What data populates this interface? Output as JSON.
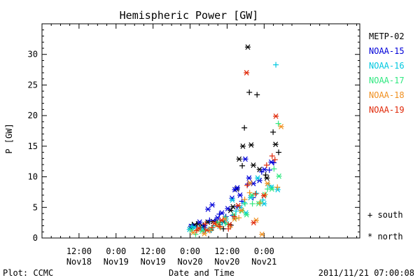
{
  "chart_data": {
    "type": "scatter",
    "title": "Hemispheric Power [GW]",
    "ylabel": "P [GW]",
    "xlabel": "Date and Time",
    "ylim": [
      0,
      35
    ],
    "yticks": [
      0,
      5,
      10,
      15,
      20,
      25,
      30
    ],
    "xlim_hours": [
      0,
      103
    ],
    "x_ticks": [
      {
        "h": 12,
        "time": "12:00",
        "date": "Nov18"
      },
      {
        "h": 24,
        "time": "0:00",
        "date": "Nov19"
      },
      {
        "h": 36,
        "time": "12:00",
        "date": "Nov19"
      },
      {
        "h": 48,
        "time": "0:00",
        "date": "Nov20"
      },
      {
        "h": 60,
        "time": "12:00",
        "date": "Nov20"
      },
      {
        "h": 72,
        "time": "0:00",
        "date": "Nov21"
      }
    ],
    "legend_placement": "right",
    "marker_legend": {
      "plus": "+ south",
      "star": "* north"
    },
    "series": [
      {
        "name": "METP-02",
        "color": "#000000",
        "north": [
          [
            48.2,
            1.6
          ],
          [
            49.5,
            2.1
          ],
          [
            50.6,
            2.3
          ],
          [
            52.1,
            1.8
          ],
          [
            53.7,
            2.6
          ],
          [
            55.4,
            2.7
          ],
          [
            57.3,
            2.2
          ],
          [
            58.9,
            2.6
          ],
          [
            61.1,
            4.5
          ],
          [
            61.9,
            5.1
          ],
          [
            63.1,
            8
          ],
          [
            63.9,
            12.9
          ],
          [
            65.1,
            15
          ],
          [
            66.7,
            31.2
          ],
          [
            67.8,
            15.2
          ],
          [
            68.5,
            11.9
          ],
          [
            70.5,
            11.2
          ],
          [
            72.9,
            9.8
          ],
          [
            75.7,
            15.3
          ]
        ],
        "south": [
          [
            48.7,
            2.2
          ],
          [
            50.3,
            2.3
          ],
          [
            52.3,
            2.1
          ],
          [
            54.8,
            1.3
          ],
          [
            56.9,
            2.6
          ],
          [
            58.8,
            1.5
          ],
          [
            61.2,
            2.1
          ],
          [
            64.9,
            11.8
          ],
          [
            65.6,
            18
          ],
          [
            67.2,
            23.8
          ],
          [
            69.7,
            23.4
          ],
          [
            72.5,
            10.3
          ],
          [
            74.9,
            17.3
          ],
          [
            76.7,
            14
          ]
        ]
      },
      {
        "name": "NOAA-15",
        "color": "#0000d8",
        "north": [
          [
            48.3,
            1.9
          ],
          [
            51.1,
            2.6
          ],
          [
            52.7,
            2
          ],
          [
            53.8,
            4.7
          ],
          [
            55.2,
            5.4
          ],
          [
            56.9,
            3.3
          ],
          [
            58.3,
            4.1
          ],
          [
            60.2,
            4.8
          ],
          [
            61.6,
            6.5
          ],
          [
            62.5,
            7.9
          ],
          [
            63.3,
            8.2
          ],
          [
            64.2,
            7
          ],
          [
            65.9,
            12.9
          ],
          [
            67.1,
            9.8
          ],
          [
            68.5,
            8.9
          ],
          [
            70.5,
            9.4
          ],
          [
            72.1,
            11.2
          ],
          [
            74.3,
            12.4
          ]
        ],
        "south": [
          [
            49.2,
            1.9
          ],
          [
            52.4,
            1.2
          ],
          [
            54.3,
            2.9
          ],
          [
            56.1,
            2.9
          ],
          [
            57.5,
            3.9
          ],
          [
            59.6,
            3.5
          ],
          [
            61.8,
            3.7
          ],
          [
            63.3,
            5.1
          ],
          [
            64.8,
            6
          ],
          [
            66.7,
            8.8
          ],
          [
            68.4,
            6.6
          ],
          [
            71.2,
            10.8
          ],
          [
            73.7,
            11.1
          ],
          [
            75.1,
            12.3
          ]
        ]
      },
      {
        "name": "NOAA-16",
        "color": "#00c8e0",
        "north": [
          [
            47.8,
            1.4
          ],
          [
            49.3,
            1.7
          ],
          [
            51.4,
            1.6
          ],
          [
            54.3,
            1.3
          ],
          [
            57.6,
            1.9
          ],
          [
            59.6,
            3.1
          ],
          [
            61.7,
            6.2
          ],
          [
            64.3,
            5
          ],
          [
            66.1,
            4.1
          ],
          [
            67.6,
            6.6
          ],
          [
            69.9,
            9.8
          ],
          [
            72,
            5.6
          ],
          [
            74.4,
            8.3
          ],
          [
            76.4,
            7.9
          ]
        ],
        "south": [
          [
            48.6,
            1.9
          ],
          [
            52.1,
            1.3
          ],
          [
            55.6,
            2
          ],
          [
            58.5,
            2.5
          ],
          [
            62.9,
            4.4
          ],
          [
            65.5,
            5.8
          ],
          [
            69.5,
            7.3
          ],
          [
            71.6,
            6.2
          ],
          [
            73.6,
            8.6
          ],
          [
            75.8,
            28.3
          ]
        ]
      },
      {
        "name": "NOAA-17",
        "color": "#30e880",
        "north": [
          [
            48.4,
            1.3
          ],
          [
            51.8,
            1.1
          ],
          [
            54.7,
            1.5
          ],
          [
            57.2,
            2.5
          ],
          [
            59.9,
            2.3
          ],
          [
            62.2,
            3.8
          ],
          [
            64.8,
            4.4
          ],
          [
            66.3,
            3.8
          ],
          [
            68,
            7
          ],
          [
            70.2,
            5.6
          ],
          [
            72.2,
            7.1
          ],
          [
            74.5,
            8
          ],
          [
            76.8,
            10.1
          ]
        ],
        "south": [
          [
            49.8,
            0.6
          ],
          [
            53.1,
            1.2
          ],
          [
            56.4,
            2.4
          ],
          [
            59.4,
            3.4
          ],
          [
            62.7,
            3.2
          ],
          [
            65.8,
            5.6
          ],
          [
            68.2,
            5.6
          ],
          [
            70.8,
            5.9
          ],
          [
            73.1,
            8
          ],
          [
            75.2,
            11.3
          ],
          [
            76.6,
            18.7
          ]
        ]
      },
      {
        "name": "NOAA-18",
        "color": "#f09020",
        "north": [
          [
            49,
            0.9
          ],
          [
            52.6,
            0.7
          ],
          [
            56.7,
            2.1
          ],
          [
            59.2,
            3.1
          ],
          [
            62.4,
            3.1
          ],
          [
            64.6,
            4.5
          ],
          [
            67.4,
            9
          ],
          [
            69.4,
            2.9
          ],
          [
            71.3,
            0.6
          ],
          [
            73.1,
            8.9
          ],
          [
            77.5,
            18.2
          ]
        ],
        "south": [
          [
            50.6,
            1.4
          ],
          [
            54.4,
            1.2
          ],
          [
            57.8,
            1.7
          ],
          [
            61,
            1.8
          ],
          [
            63.8,
            3.3
          ],
          [
            65.7,
            6.3
          ],
          [
            67.3,
            7.4
          ],
          [
            70.6,
            5.7
          ],
          [
            72.3,
            7.1
          ],
          [
            76.3,
            8.3
          ]
        ]
      },
      {
        "name": "NOAA-19",
        "color": "#e02808",
        "north": [
          [
            50.8,
            1.6
          ],
          [
            53.4,
            1.3
          ],
          [
            55.9,
            2.4
          ],
          [
            58.2,
            2.9
          ],
          [
            60.8,
            2.2
          ],
          [
            63.6,
            5.3
          ],
          [
            66.3,
            27
          ],
          [
            68.6,
            2.5
          ],
          [
            71.9,
            6.9
          ],
          [
            75.8,
            19.9
          ]
        ],
        "south": [
          [
            50.1,
            1.2
          ],
          [
            52.9,
            2.3
          ],
          [
            55.1,
            1.7
          ],
          [
            57.6,
            1.9
          ],
          [
            60.4,
            1.5
          ],
          [
            62.3,
            3.5
          ],
          [
            66.5,
            8.6
          ],
          [
            69.2,
            7.2
          ],
          [
            72.8,
            11.9
          ],
          [
            74.6,
            13.4
          ],
          [
            75.5,
            12.8
          ]
        ]
      }
    ]
  },
  "footer": {
    "plot_source": "Plot: CCMC",
    "timestamp": "2011/11/21 07:00:08"
  }
}
